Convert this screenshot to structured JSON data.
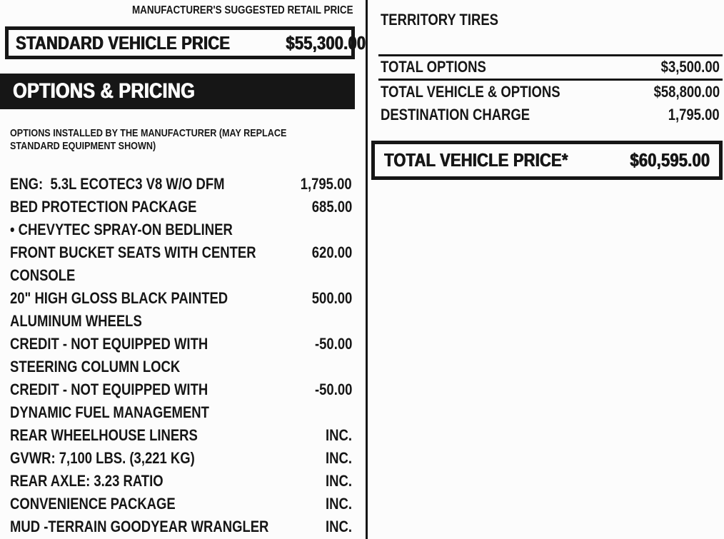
{
  "msrp_header": "MANUFACTURER'S SUGGESTED RETAIL PRICE",
  "standard_price": {
    "label": "STANDARD VEHICLE PRICE",
    "amount": "$55,300.00"
  },
  "options_section": {
    "title": "OPTIONS & PRICING",
    "note_line1": "OPTIONS INSTALLED BY THE MANUFACTURER (MAY REPLACE",
    "note_line2": "STANDARD EQUIPMENT SHOWN)",
    "items": [
      {
        "lines": [
          "ENG:  5.3L ECOTEC3 V8 W/O DFM"
        ],
        "price": "1,795.00"
      },
      {
        "lines": [
          "BED PROTECTION PACKAGE"
        ],
        "price": "685.00"
      },
      {
        "lines": [
          "• CHEVYTEC SPRAY-ON BEDLINER"
        ],
        "price": ""
      },
      {
        "lines": [
          "FRONT BUCKET SEATS WITH CENTER",
          "CONSOLE"
        ],
        "price": "620.00"
      },
      {
        "lines": [
          "20\" HIGH GLOSS BLACK PAINTED",
          "ALUMINUM WHEELS"
        ],
        "price": "500.00"
      },
      {
        "lines": [
          "CREDIT - NOT EQUIPPED WITH",
          "STEERING COLUMN LOCK"
        ],
        "price": "-50.00"
      },
      {
        "lines": [
          "CREDIT - NOT EQUIPPED WITH",
          "DYNAMIC FUEL MANAGEMENT"
        ],
        "price": "-50.00"
      },
      {
        "lines": [
          "REAR WHEELHOUSE LINERS"
        ],
        "price": "INC."
      },
      {
        "lines": [
          "GVWR: 7,100 LBS. (3,221 KG)"
        ],
        "price": "INC."
      },
      {
        "lines": [
          "REAR AXLE: 3.23 RATIO"
        ],
        "price": "INC."
      },
      {
        "lines": [
          "CONVENIENCE PACKAGE"
        ],
        "price": "INC."
      },
      {
        "lines": [
          "MUD -TERRAIN GOODYEAR WRANGLER"
        ],
        "price": "INC."
      }
    ],
    "continuation": "TERRITORY TIRES"
  },
  "totals": {
    "rows": [
      {
        "label": "TOTAL OPTIONS",
        "amount": "$3,500.00"
      },
      {
        "label": "TOTAL VEHICLE & OPTIONS",
        "amount": "$58,800.00"
      },
      {
        "label": "DESTINATION CHARGE",
        "amount": "1,795.00"
      }
    ],
    "total": {
      "label": "TOTAL VEHICLE PRICE*",
      "amount": "$60,595.00"
    }
  },
  "colors": {
    "ink": "#161616",
    "paper": "#fcfcfc"
  }
}
